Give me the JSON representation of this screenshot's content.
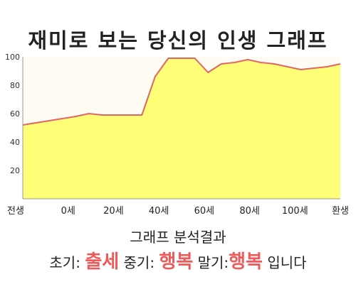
{
  "page_title": "재미로 보는 당신의 인생 그래프",
  "chart_data": {
    "type": "area",
    "title": "재미로 보는 당신의 인생 그래프",
    "categories": [
      "전생",
      "0세",
      "20세",
      "40세",
      "60세",
      "80세",
      "100세",
      "환생"
    ],
    "x": [
      -10,
      0,
      10,
      15,
      20,
      25,
      30,
      35,
      40,
      45,
      50,
      55,
      60,
      65,
      70,
      75,
      80,
      85,
      90,
      95,
      100,
      105,
      110
    ],
    "values": [
      52,
      55,
      58,
      60,
      59,
      59,
      59,
      59,
      86,
      99,
      99,
      99,
      89,
      95,
      96,
      98,
      96,
      95,
      93,
      91,
      92,
      93,
      95
    ],
    "y_ticks": [
      "20",
      "40",
      "60",
      "80",
      "100"
    ],
    "xlim": [
      -10,
      110
    ],
    "ylim": [
      0,
      100
    ],
    "grid": false,
    "fill_color": "#ffff77",
    "line_color": "#e06666",
    "plot_background": "#fffdf3"
  },
  "analysis": {
    "title": "그래프 분석결과",
    "early_label": "초기:",
    "early_value": "출세",
    "middle_label": "중기:",
    "middle_value": "행복",
    "late_label": "말기:",
    "late_value": "행복",
    "suffix": "입니다"
  },
  "colors": {
    "highlight": "#ef5a5a"
  }
}
